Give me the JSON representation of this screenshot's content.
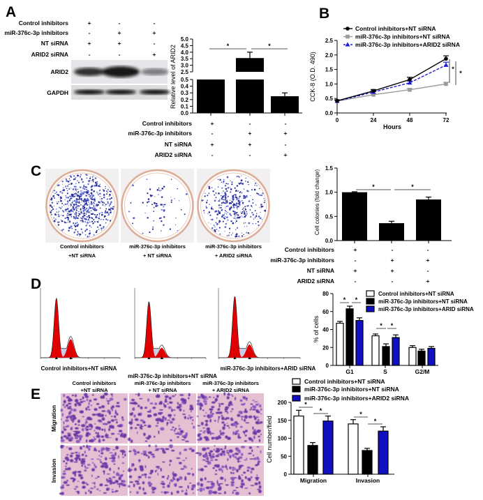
{
  "panel_labels": [
    "A",
    "B",
    "C",
    "D",
    "E"
  ],
  "treatment_table": {
    "rows": [
      "Control inhibitors",
      "miR-376c-3p inhibitors",
      "NT siRNA",
      "ARID2 siRNA"
    ],
    "signs": [
      [
        "+",
        "-",
        "-"
      ],
      [
        "-",
        "+",
        "+"
      ],
      [
        "+",
        "+",
        "-"
      ],
      [
        "-",
        "-",
        "+"
      ]
    ]
  },
  "blot": {
    "labels": [
      "ARID2",
      "GAPDH"
    ]
  },
  "colony_plates": {
    "captions": [
      [
        "Control inhibitors",
        "+NT siRNA"
      ],
      [
        "miR-376c-3p inhibitors",
        "+ NT siRNA"
      ],
      [
        "miR-376c-3p inhibitors",
        "+ ARID2 siRNA"
      ]
    ]
  },
  "flow_histograms": {
    "captions": [
      "Control inhibitors+NT siRNA",
      "miR-376c-3p inhibitors+NT siRNA",
      "miR-376c-3p inhibitors+ARID siRNA"
    ]
  },
  "transwell": {
    "column_captions": [
      [
        "Control inhibitors",
        "+NT siRNA"
      ],
      [
        "miR-376c-3p inhibitors",
        "+ NT siRNA"
      ],
      [
        "miR-376c-3p inhibitors",
        "+ ARID2 siRNA"
      ]
    ],
    "row_labels": [
      "Migration",
      "Invasion"
    ]
  },
  "chart_data": [
    {
      "panel": "A",
      "type": "bar",
      "ylabel": "Relative level of ARID2",
      "y_axis": "broken",
      "ylim_segments": [
        [
          0,
          0.5
        ],
        [
          2.5,
          5.0
        ]
      ],
      "yticks": [
        "0.0",
        "0.1",
        "0.2",
        "0.3",
        "0.4",
        "0.5",
        "2.5",
        "3.0",
        "3.5",
        "4.0",
        "4.5",
        "5.0"
      ],
      "values": [
        1.0,
        3.55,
        0.25
      ],
      "errors": [
        0,
        0.45,
        0.05
      ],
      "bar_color": "#000000",
      "significance": [
        {
          "from": 0,
          "to": 1,
          "label": "*"
        },
        {
          "from": 1,
          "to": 2,
          "label": "*"
        }
      ]
    },
    {
      "panel": "B",
      "type": "line",
      "xlabel": "Hours",
      "ylabel": "CCK-8 (O.D. 490)",
      "x": [
        0,
        24,
        48,
        72
      ],
      "xticks": [
        "0",
        "24",
        "48",
        "72"
      ],
      "yticks": [
        "0.0",
        "0.5",
        "1.0",
        "1.5",
        "2.0",
        "2.5"
      ],
      "ylim": [
        0,
        2.5
      ],
      "legend": "top-left",
      "series": [
        {
          "name": "Control inhibitors+NT siRNA",
          "values": [
            0.42,
            0.76,
            1.15,
            1.87
          ],
          "errors": [
            0.03,
            0.05,
            0.08,
            0.1
          ],
          "color": "#000000",
          "marker": "circle",
          "dash": false
        },
        {
          "name": "miR-376c-3p inhibitors+NT siRNA",
          "values": [
            0.41,
            0.63,
            0.8,
            1.0
          ],
          "errors": [
            0.03,
            0.03,
            0.04,
            0.06
          ],
          "color": "#9a9a9a",
          "marker": "square",
          "dash": false
        },
        {
          "name": "miR-376c-3p inhibitors+ARID2 siRNA",
          "values": [
            0.41,
            0.72,
            1.04,
            1.65
          ],
          "errors": [
            0.03,
            0.05,
            0.06,
            0.1
          ],
          "color": "#1c1cd6",
          "marker": "triangle",
          "dash": true
        }
      ],
      "significance": [
        "*",
        "*"
      ]
    },
    {
      "panel": "C",
      "type": "bar",
      "ylabel": "Cell colonies (fold change)",
      "ylim": [
        0,
        1.5
      ],
      "yticks": [
        "0.0",
        "0.5",
        "1.0",
        "1.5"
      ],
      "values": [
        1.0,
        0.36,
        0.85
      ],
      "errors": [
        0.01,
        0.04,
        0.05
      ],
      "bar_color": "#000000",
      "significance": [
        {
          "from": 0,
          "to": 1,
          "label": "*"
        },
        {
          "from": 1,
          "to": 2,
          "label": "*"
        }
      ]
    },
    {
      "panel": "D",
      "type": "bar",
      "ylabel": "% of cells",
      "categories": [
        "G1",
        "S",
        "G2/M"
      ],
      "ylim": [
        0,
        80
      ],
      "yticks": [
        "0",
        "20",
        "40",
        "60",
        "80"
      ],
      "legend": "top-right",
      "series": [
        {
          "name": "Control inhibitors+NT siRNA",
          "values": [
            47,
            33,
            20
          ],
          "errors": [
            2,
            2,
            2
          ],
          "color": "#ffffff"
        },
        {
          "name": "miR-376c-3p inhibitors+NT siRNA",
          "values": [
            63,
            21,
            16
          ],
          "errors": [
            3,
            3,
            2
          ],
          "color": "#000000"
        },
        {
          "name": "miR-376c-3p inhibitors+ARID siRNA",
          "values": [
            50,
            31,
            19
          ],
          "errors": [
            3,
            3,
            2
          ],
          "color": "#1010c0"
        }
      ],
      "significance_label": "*"
    },
    {
      "panel": "E",
      "type": "bar",
      "ylabel": "Cell number/field",
      "categories": [
        "Migration",
        "Invasion"
      ],
      "ylim": [
        0,
        200
      ],
      "yticks": [
        "0",
        "50",
        "100",
        "150",
        "200"
      ],
      "legend": "top",
      "series": [
        {
          "name": "Control inhibitors+NT siRNA",
          "values": [
            162,
            140
          ],
          "errors": [
            16,
            12
          ],
          "color": "#ffffff"
        },
        {
          "name": "miR-376c-3p inhibitors+NT siRNA",
          "values": [
            80,
            66
          ],
          "errors": [
            8,
            6
          ],
          "color": "#000000"
        },
        {
          "name": "miR-376c-3p inhibitors+ARID2 siRNA",
          "values": [
            148,
            120
          ],
          "errors": [
            14,
            12
          ],
          "color": "#1010c0"
        }
      ],
      "significance_label": "*"
    }
  ]
}
